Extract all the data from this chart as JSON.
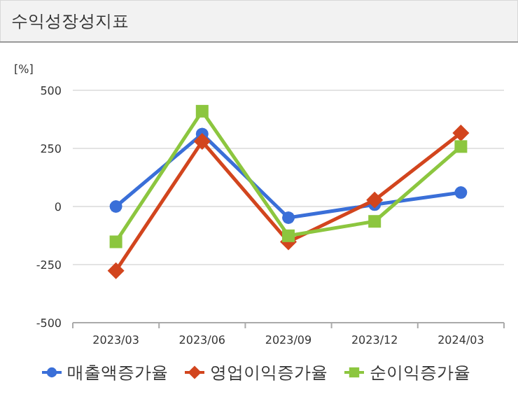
{
  "chart_data": {
    "type": "line",
    "title": "수익성장성지표",
    "ylabel": "[%]",
    "categories": [
      "2023/03",
      "2023/06",
      "2023/09",
      "2023/12",
      "2024/03"
    ],
    "series": [
      {
        "name": "매출액증가율",
        "color": "#3a6fd8",
        "marker": "circle",
        "values": [
          0,
          312,
          -48,
          8,
          60
        ]
      },
      {
        "name": "영업이익증가율",
        "color": "#d2451e",
        "marker": "diamond",
        "values": [
          -276,
          280,
          -152,
          28,
          316
        ]
      },
      {
        "name": "순이익증가율",
        "color": "#8cc63f",
        "marker": "square",
        "values": [
          -152,
          410,
          -126,
          -64,
          258
        ]
      }
    ],
    "ylim": [
      -500,
      500
    ],
    "yticks": [
      -500,
      -250,
      0,
      250,
      500
    ],
    "grid": "y",
    "legend": "bottom"
  }
}
